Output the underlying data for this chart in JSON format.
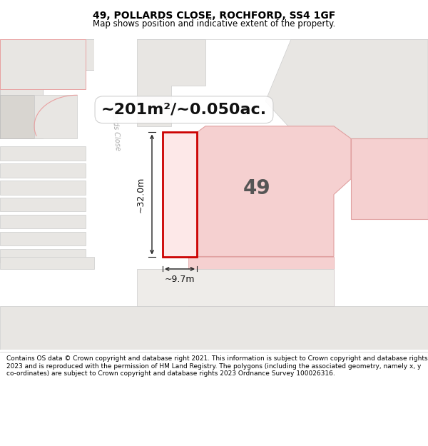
{
  "title": "49, POLLARDS CLOSE, ROCHFORD, SS4 1GF",
  "subtitle": "Map shows position and indicative extent of the property.",
  "area_text": "~201m²/~0.050ac.",
  "dim_width": "~9.7m",
  "dim_height": "~32.0m",
  "label_49": "49",
  "footer": "Contains OS data © Crown copyright and database right 2021. This information is subject to Crown copyright and database rights 2023 and is reproduced with the permission of HM Land Registry. The polygons (including the associated geometry, namely x, y co-ordinates) are subject to Crown copyright and database rights 2023 Ordnance Survey 100026316.",
  "bg_white": "#ffffff",
  "map_bg": "#f7f6f4",
  "building_light_gray": "#e8e6e3",
  "building_med_gray": "#d8d5d0",
  "road_white": "#ffffff",
  "plot_fill": "#fde8e8",
  "plot_border": "#cc0000",
  "pink_area_fill": "#f5d0d0",
  "pink_area_border": "#e0a0a0",
  "arrow_color": "#222222",
  "road_label_color": "#aaaaaa",
  "label_color": "#555555",
  "title_fontsize": 10,
  "subtitle_fontsize": 8.5,
  "area_fontsize": 16,
  "dim_fontsize": 9,
  "footer_fontsize": 6.5,
  "label_49_fontsize": 20
}
